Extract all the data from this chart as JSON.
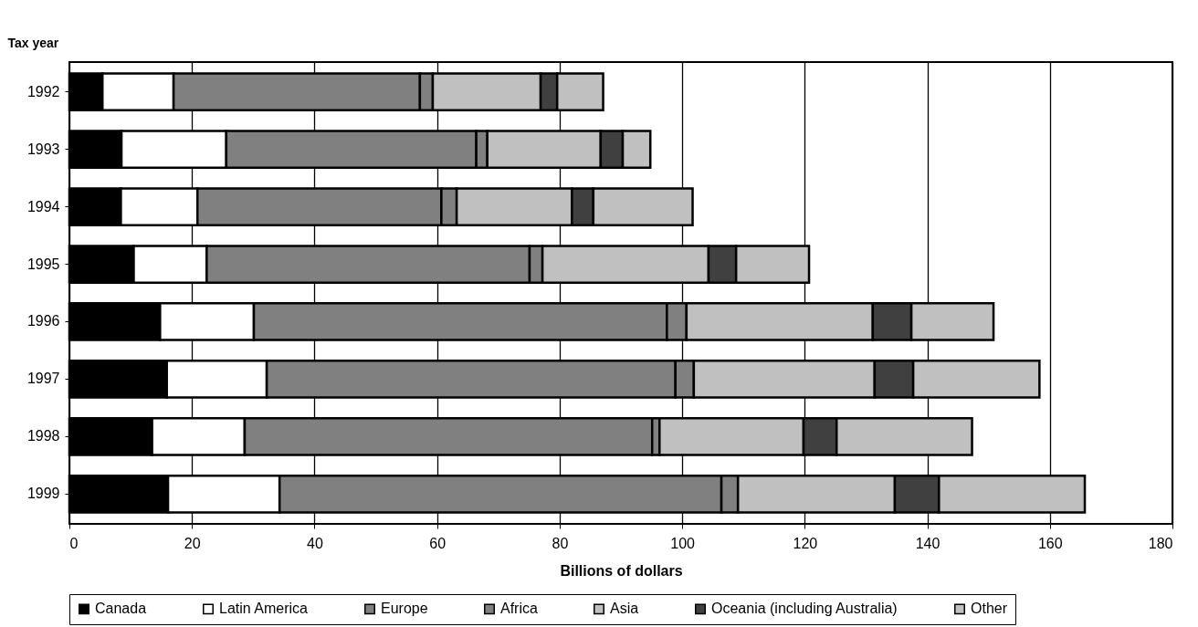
{
  "chart_data": {
    "type": "bar",
    "orientation": "horizontal",
    "stacked": true,
    "xlabel": "Billions of dollars",
    "ylabel": "Tax year",
    "categories": [
      "1992",
      "1993",
      "1994",
      "1995",
      "1996",
      "1997",
      "1998",
      "1999"
    ],
    "series": [
      {
        "name": "Canada",
        "color": "#000000",
        "values": [
          5.4,
          8.5,
          8.4,
          10.5,
          14.8,
          15.9,
          13.5,
          16.1
        ]
      },
      {
        "name": "Latin America",
        "color": "#ffffff",
        "values": [
          11.6,
          17.1,
          12.5,
          11.9,
          15.3,
          16.3,
          15.1,
          18.2
        ]
      },
      {
        "name": "Europe",
        "color": "#808080",
        "values": [
          40.2,
          40.8,
          39.8,
          52.7,
          67.4,
          66.7,
          66.5,
          72.1
        ]
      },
      {
        "name": "Africa",
        "color": "#808080",
        "values": [
          2.1,
          1.8,
          2.5,
          2.1,
          3.2,
          3.0,
          1.2,
          2.7
        ]
      },
      {
        "name": "Asia",
        "color": "#c0c0c0",
        "values": [
          17.6,
          18.5,
          18.8,
          27.1,
          30.4,
          29.5,
          23.5,
          25.6
        ]
      },
      {
        "name": "Oceania (including Australia)",
        "color": "#404040",
        "values": [
          2.7,
          3.6,
          3.5,
          4.5,
          6.3,
          6.3,
          5.4,
          7.2
        ]
      },
      {
        "name": "Other",
        "color": "#c0c0c0",
        "values": [
          7.5,
          4.5,
          16.2,
          11.9,
          13.4,
          20.6,
          22.1,
          23.8
        ]
      }
    ],
    "xlim": [
      0,
      180
    ],
    "xticks": [
      0,
      20,
      40,
      60,
      80,
      100,
      120,
      140,
      160,
      180
    ],
    "grid": "x",
    "legend": "bottom"
  }
}
